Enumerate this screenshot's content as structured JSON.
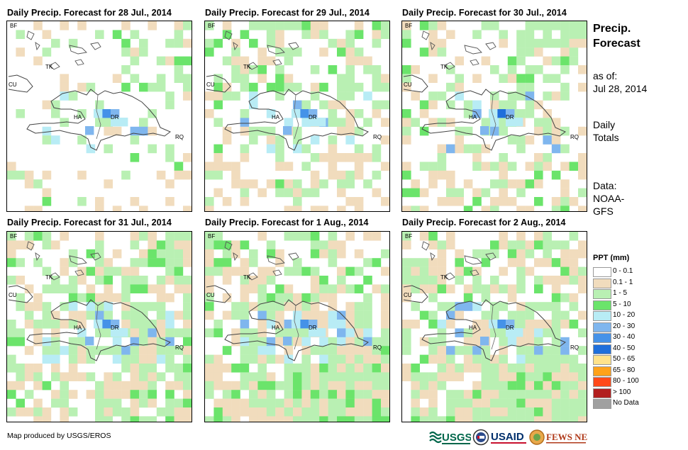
{
  "panels": [
    {
      "title": "Daily Precip. Forecast for 28 Jul., 2014"
    },
    {
      "title": "Daily Precip. Forecast for 29 Jul., 2014"
    },
    {
      "title": "Daily Precip. Forecast for 30 Jul., 2014"
    },
    {
      "title": "Daily Precip. Forecast for 31 Jul., 2014"
    },
    {
      "title": "Daily Precip. Forecast for 1 Aug., 2014"
    },
    {
      "title": "Daily Precip. Forecast for 2 Aug., 2014"
    }
  ],
  "map_labels": {
    "bf": "BF",
    "tk": "TK",
    "cu": "CU",
    "ha": "HA",
    "dr": "DR",
    "rq": "RQ"
  },
  "sidebar": {
    "title_line1": "Precip.",
    "title_line2": "Forecast",
    "asof_label": "as of:",
    "asof_date": "Jul 28, 2014",
    "totals_line1": "Daily",
    "totals_line2": "Totals",
    "data_line1": "Data:",
    "data_line2": "NOAA-",
    "data_line3": "GFS"
  },
  "legend": {
    "title": "PPT (mm)",
    "items": [
      {
        "label": "0 - 0.1",
        "color": "#ffffff"
      },
      {
        "label": "0.1 - 1",
        "color": "#f1dcbd"
      },
      {
        "label": "1 - 5",
        "color": "#b9f0b3"
      },
      {
        "label": "5 - 10",
        "color": "#6be46b"
      },
      {
        "label": "10 - 20",
        "color": "#b8ecf5"
      },
      {
        "label": "20 - 30",
        "color": "#7fb6ee"
      },
      {
        "label": "30 - 40",
        "color": "#4592e8"
      },
      {
        "label": "40 - 50",
        "color": "#1f6fdb"
      },
      {
        "label": "50 - 65",
        "color": "#ffe28a"
      },
      {
        "label": "65 - 80",
        "color": "#ffa21a"
      },
      {
        "label": "80 - 100",
        "color": "#ff4a1a"
      },
      {
        "label": "> 100",
        "color": "#b21e1e"
      },
      {
        "label": "No Data",
        "color": "#a0a0a0"
      }
    ]
  },
  "footer": {
    "credit": "Map produced by USGS/EROS",
    "logo_usgs": "USGS",
    "logo_usaid": "USAID",
    "logo_fews": "FEWS NET"
  }
}
